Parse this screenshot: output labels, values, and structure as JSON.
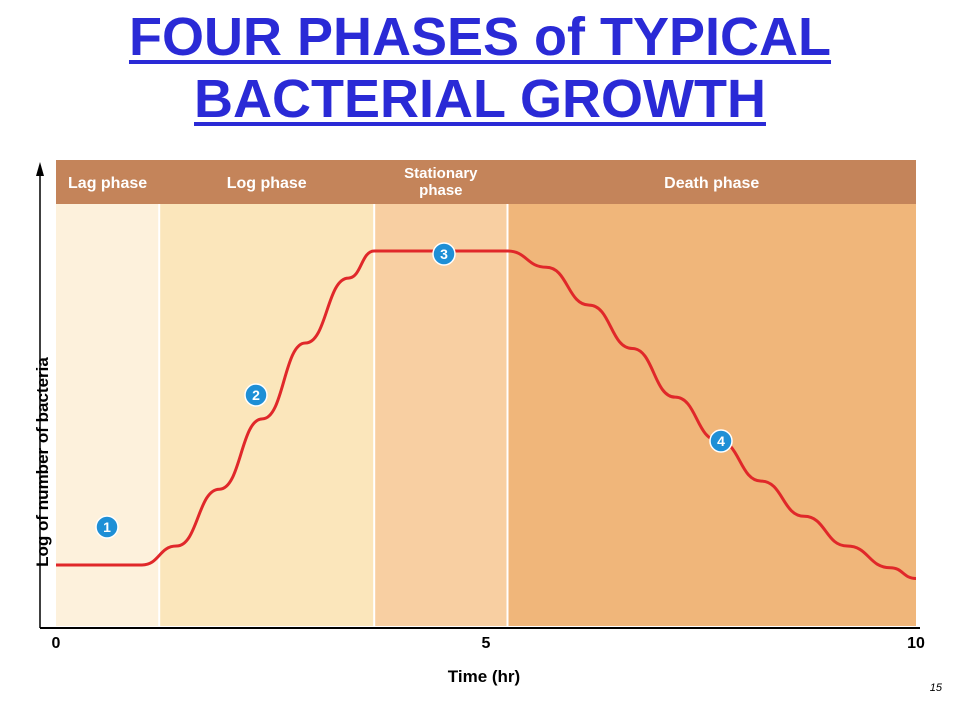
{
  "slide": {
    "title_line1": "FOUR PHASES of TYPICAL",
    "title_line2": "BACTERIAL  GROWTH",
    "page_number": "15"
  },
  "colors": {
    "title": "#2a2ad6",
    "header_band": "#c4845a",
    "lag_bg": "#fdf1dc",
    "log_bg": "#fbe6bb",
    "stationary_bg": "#f8cfa2",
    "death_bg": "#f0b67a",
    "curve": "#e0282a",
    "badge": "#1e8fd6"
  },
  "chart_data": {
    "type": "line",
    "xlabel": "Time (hr)",
    "ylabel": "Log of number of bacteria",
    "xlim": [
      0,
      10
    ],
    "x_ticks": [
      "0",
      "5",
      "10"
    ],
    "phases": [
      {
        "name": "Lag phase",
        "start": 0,
        "end": 1.2,
        "marker": "1"
      },
      {
        "name": "Log phase",
        "start": 1.2,
        "end": 3.7,
        "marker": "2"
      },
      {
        "name": "Stationary phase",
        "start": 3.7,
        "end": 5.25,
        "marker": "3"
      },
      {
        "name": "Death phase",
        "start": 5.25,
        "end": 10,
        "marker": "4"
      }
    ],
    "curve": {
      "x": [
        0,
        1.0,
        1.4,
        1.9,
        2.4,
        2.9,
        3.4,
        3.7,
        4.2,
        4.7,
        5.25,
        5.7,
        6.2,
        6.7,
        7.2,
        7.7,
        8.2,
        8.7,
        9.2,
        9.7,
        10
      ],
      "y": [
        1.0,
        1.0,
        1.35,
        2.4,
        3.7,
        5.1,
        6.3,
        6.8,
        6.8,
        6.8,
        6.8,
        6.5,
        5.8,
        5.0,
        4.1,
        3.3,
        2.55,
        1.9,
        1.35,
        0.95,
        0.75
      ]
    },
    "ylim": [
      0,
      10
    ],
    "grid": false,
    "legend": "none"
  }
}
